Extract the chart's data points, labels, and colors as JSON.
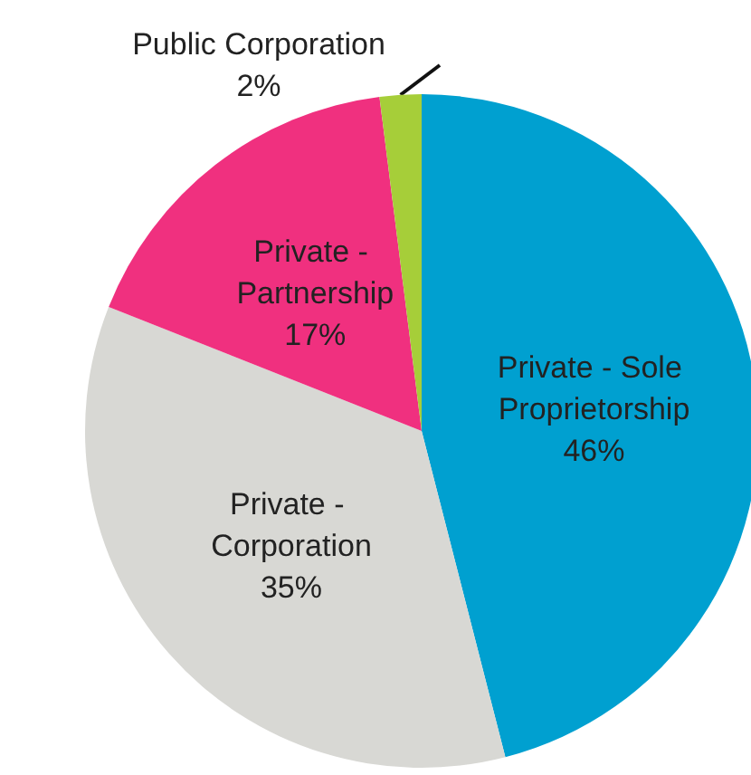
{
  "chart_data": {
    "type": "pie",
    "categories": [
      "Private - Sole Proprietorship",
      "Private - Corporation",
      "Private - Partnership",
      "Public Corporation"
    ],
    "values": [
      46,
      35,
      17,
      2
    ],
    "value_labels": [
      "46%",
      "35%",
      "17%",
      "2%"
    ],
    "colors": [
      "#00a0d0",
      "#d8d8d4",
      "#f0307f",
      "#a6ce39"
    ],
    "legend": false
  }
}
